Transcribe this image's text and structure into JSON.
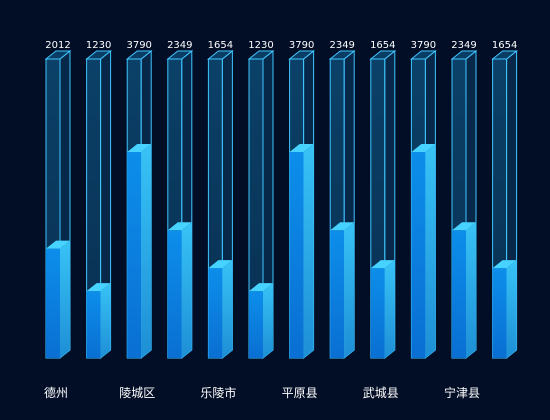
{
  "chart_data": {
    "type": "bar",
    "categories": [
      "德州",
      "",
      "陵城区",
      "",
      "乐陵市",
      "",
      "平原县",
      "",
      "武城县",
      "",
      "宁津县",
      ""
    ],
    "values": [
      2012,
      1230,
      3790,
      2349,
      1654,
      1230,
      3790,
      2349,
      1654,
      3790,
      2349,
      1654
    ],
    "ylim": [
      0,
      5500
    ],
    "grid": false,
    "title": "",
    "xlabel": "",
    "ylabel": ""
  },
  "colors": {
    "background": "#020d26",
    "frame_stroke": "#3fc6ff",
    "frame_fill": "#0d4a74",
    "bar_front_top": "#0c8eea",
    "bar_front_bottom": "#0a6fd3",
    "bar_side": "#38c3f6",
    "bar_top": "#46d3ff",
    "label": "#ffffff"
  }
}
